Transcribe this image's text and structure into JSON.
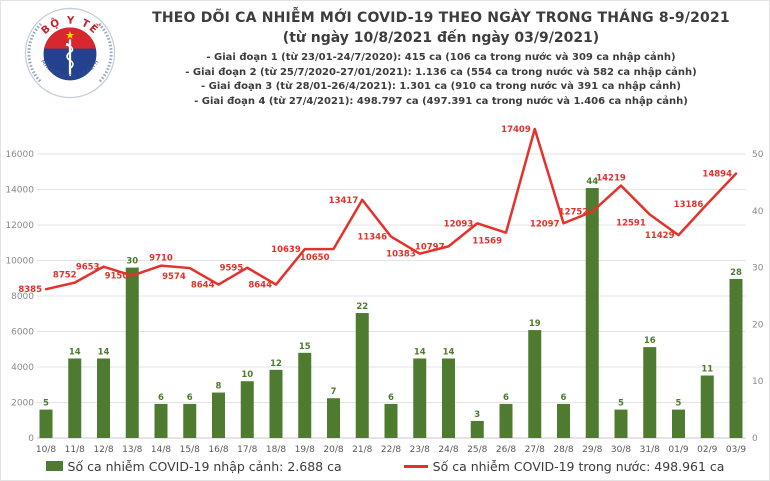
{
  "logo": {
    "top_text": "BỘ Y TẾ",
    "bottom_text": "MINISTRY OF HEALTH"
  },
  "header": {
    "title": "THEO DÕI CA NHIỄM MỚI COVID-19 THEO NGÀY TRONG THÁNG 8-9/2021",
    "subtitle": "(từ ngày 10/8/2021 đến ngày 03/9/2021)",
    "bullets": [
      "- Giai đoạn 1 (từ 23/01-24/7/2020): 415 ca (106 ca trong nước và 309 ca nhập cảnh)",
      "- Giai đoạn 2 (từ 25/7/2020-27/01/2021): 1.136 ca (554 ca trong nước và 582 ca nhập cảnh)",
      "- Giai đoạn 3 (từ 28/01-26/4/2021): 1.301 ca (910 ca trong nước và 391 ca nhập cảnh)",
      "- Giai đoạn 4 (từ 27/4/2021): 498.797 ca (497.391 ca trong nước và 1.406 ca nhập cảnh)"
    ]
  },
  "chart_data": {
    "type": "combo",
    "categories": [
      "10/8",
      "11/8",
      "12/8",
      "13/8",
      "14/8",
      "15/8",
      "16/8",
      "17/8",
      "18/8",
      "19/8",
      "20/8",
      "21/8",
      "22/8",
      "23/8",
      "24/8",
      "25/8",
      "26/8",
      "27/8",
      "28/8",
      "29/8",
      "30/8",
      "31/8",
      "01/9",
      "02/9",
      "03/9"
    ],
    "series": [
      {
        "name": "Số ca nhiễm COVID-19 nhập cảnh",
        "type": "bar",
        "axis": "right",
        "values": [
          5,
          14,
          14,
          30,
          6,
          6,
          8,
          10,
          12,
          15,
          7,
          22,
          6,
          14,
          14,
          3,
          6,
          19,
          6,
          44,
          5,
          16,
          5,
          11,
          28
        ]
      },
      {
        "name": "Số ca nhiễm COVID-19 trong nước",
        "type": "line",
        "axis": "left",
        "values": [
          8385,
          8752,
          9653,
          9150,
          9710,
          9574,
          8644,
          9595,
          8644,
          10639,
          10650,
          13417,
          11346,
          10383,
          10797,
          12093,
          11569,
          17409,
          12097,
          12752,
          14219,
          12591,
          11429,
          13186,
          14894
        ]
      }
    ],
    "left_axis": {
      "ticks": [
        0,
        2000,
        4000,
        6000,
        8000,
        10000,
        12000,
        14000,
        16000
      ],
      "min": 0,
      "max": 16000
    },
    "right_axis": {
      "ticks": [
        0,
        10,
        20,
        30,
        40,
        50
      ],
      "min": 0,
      "max": 50
    },
    "label_pos": [
      "l",
      "al",
      "l",
      "l",
      "a",
      "lb",
      "l",
      "l",
      "l",
      "l",
      "lb",
      "l",
      "l",
      "l",
      "l",
      "l",
      "lb",
      "l",
      "l",
      "l",
      "al",
      "lb",
      "l",
      "l",
      "l"
    ],
    "colors": {
      "bar": "#4f7b31",
      "line": "#e5312a",
      "axis_text": "#8a8a8a",
      "date_text": "#595959",
      "grid": "#e3e3e3"
    },
    "grid": "horizontal",
    "legend_position": "bottom"
  },
  "legend": {
    "items": [
      {
        "label": "Số ca nhiễm COVID-19 nhập cảnh: 2.688 ca",
        "color": "#4f7b31",
        "marker": "square"
      },
      {
        "label": "Số ca nhiễm COVID-19 trong nước: 498.961 ca",
        "color": "#e5312a",
        "marker": "line"
      }
    ]
  }
}
